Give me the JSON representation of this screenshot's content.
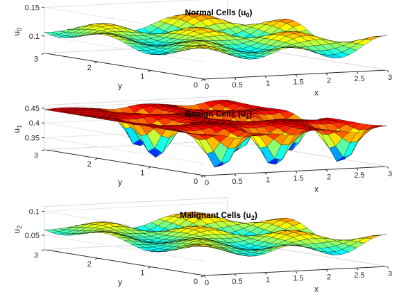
{
  "chart_data": [
    {
      "type": "surface",
      "title": "Normal Cells (u",
      "title_sub": "0",
      "title_close": ")",
      "xlabel": "x",
      "ylabel": "y",
      "zlabel": "u",
      "zlabel_sub": "0",
      "xlim": [
        0,
        3
      ],
      "ylim": [
        0,
        3
      ],
      "zlim": [
        0.07,
        0.15
      ],
      "x_ticks": [
        "0",
        "0.5",
        "1",
        "1.5",
        "2",
        "2.5",
        "3"
      ],
      "y_ticks": [
        "0",
        "1",
        "2",
        "3"
      ],
      "z_ticks": [
        "0.1",
        "0.15"
      ],
      "z_tick_values": [
        0.1,
        0.15
      ],
      "base": 0.11,
      "amp": 0.03,
      "mode": "waves",
      "grid": true,
      "colormap": "jet"
    },
    {
      "type": "surface",
      "title": "Benign Cells (u",
      "title_sub": "1",
      "title_close": ")",
      "xlabel": "x",
      "ylabel": "y",
      "zlabel": "u",
      "zlabel_sub": "1",
      "xlim": [
        0,
        3
      ],
      "ylim": [
        0,
        3
      ],
      "zlim": [
        0.31,
        0.46
      ],
      "x_ticks": [
        "0",
        "0.5",
        "1",
        "1.5",
        "2",
        "2.5",
        "3"
      ],
      "y_ticks": [
        "0",
        "1",
        "2",
        "3"
      ],
      "z_ticks": [
        "0.35",
        "0.4",
        "0.45"
      ],
      "z_tick_values": [
        0.35,
        0.4,
        0.45
      ],
      "base": 0.445,
      "amp": 0.13,
      "mode": "pits",
      "grid": true,
      "colormap": "jet"
    },
    {
      "type": "surface",
      "title": "Malignant Cells (u",
      "title_sub": "2",
      "title_close": ")",
      "xlabel": "x",
      "ylabel": "y",
      "zlabel": "u",
      "zlabel_sub": "2",
      "xlim": [
        0,
        3
      ],
      "ylim": [
        0,
        3
      ],
      "zlim": [
        0.02,
        0.11
      ],
      "x_ticks": [
        "0",
        "0.5",
        "1",
        "1.5",
        "2",
        "2.5",
        "3"
      ],
      "y_ticks": [
        "0",
        "1",
        "2",
        "3"
      ],
      "z_ticks": [
        "0.05",
        "0.1"
      ],
      "z_tick_values": [
        0.05,
        0.1
      ],
      "base": 0.065,
      "amp": 0.032,
      "mode": "waves",
      "grid": true,
      "colormap": "jet"
    }
  ]
}
